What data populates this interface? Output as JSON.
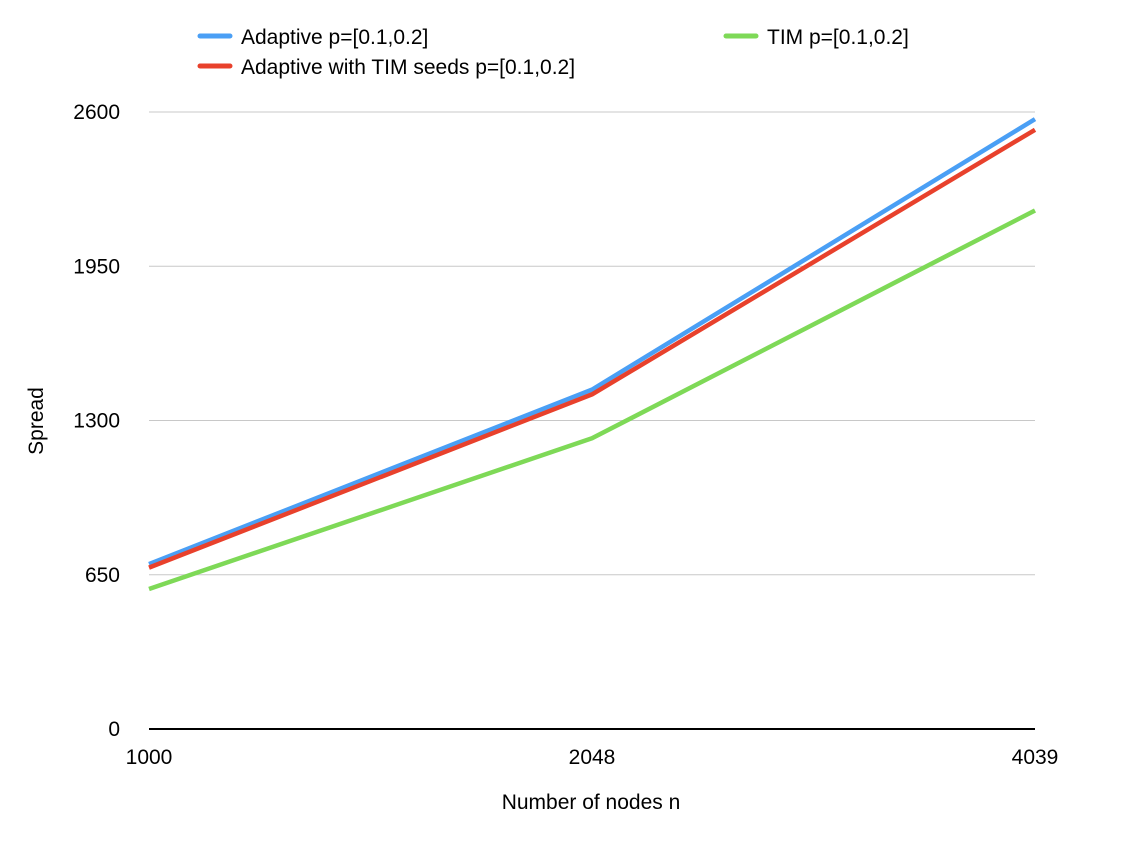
{
  "chart_data": {
    "type": "line",
    "xlabel": "Number of nodes n",
    "ylabel": "Spread",
    "categories": [
      "1000",
      "2048",
      "4039"
    ],
    "yticks": [
      0,
      650,
      1300,
      1950,
      2600
    ],
    "ylim": [
      0,
      2600
    ],
    "grid": true,
    "legend_position": "top",
    "series": [
      {
        "name": "Adaptive p=[0.1,0.2]",
        "color": "#4a9ff5",
        "values": [
          695,
          1430,
          2570
        ]
      },
      {
        "name": "Adaptive with TIM seeds p=[0.1,0.2]",
        "color": "#e8412c",
        "values": [
          680,
          1410,
          2525
        ]
      },
      {
        "name": "TIM p=[0.1,0.2]",
        "color": "#7ed957",
        "values": [
          590,
          1225,
          2185
        ]
      }
    ]
  }
}
